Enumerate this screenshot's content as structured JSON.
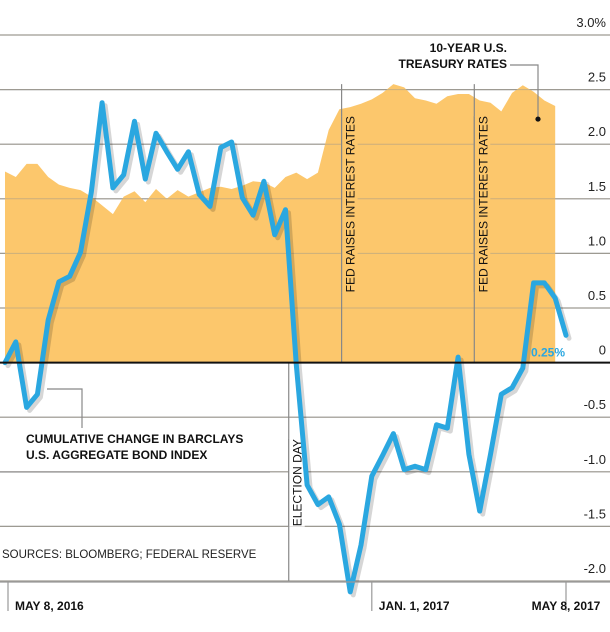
{
  "chart_data": {
    "type": "line",
    "title": "",
    "xlabel": "",
    "ylabel": "",
    "ylim": [
      -2.0,
      3.0
    ],
    "y_ticks": [
      {
        "value": 3.0,
        "label": "3.0%"
      },
      {
        "value": 2.5,
        "label": "2.5"
      },
      {
        "value": 2.0,
        "label": "2.0"
      },
      {
        "value": 1.5,
        "label": "1.5"
      },
      {
        "value": 1.0,
        "label": "1.0"
      },
      {
        "value": 0.5,
        "label": "0.5"
      },
      {
        "value": 0,
        "label": "0"
      },
      {
        "value": -0.5,
        "label": "-0.5"
      },
      {
        "value": -1.0,
        "label": "-1.0"
      },
      {
        "value": -1.5,
        "label": "-1.5"
      },
      {
        "value": -2.0,
        "label": "-2.0"
      }
    ],
    "x_range_weeks": [
      0,
      52
    ],
    "x_ticks": [
      {
        "week": 0,
        "label": "MAY 8, 2016"
      },
      {
        "week": 34,
        "label": "JAN. 1, 2017"
      },
      {
        "week": 52,
        "label": "MAY 8, 2017"
      }
    ],
    "grid": true,
    "series": [
      {
        "name": "10-YEAR U.S. TREASURY RATES",
        "type": "area",
        "color": "#fcc76c",
        "x": [
          0,
          1,
          2,
          3,
          4,
          5,
          6,
          7,
          8,
          9,
          10,
          11,
          12,
          13,
          14,
          15,
          16,
          17,
          18,
          19,
          20,
          21,
          22,
          23,
          24,
          25,
          26,
          27,
          28,
          29,
          30,
          31,
          32,
          33,
          34,
          35,
          36,
          37,
          38,
          39,
          40,
          41,
          42,
          43,
          44,
          45,
          46,
          47,
          48,
          49,
          50,
          51
        ],
        "values": [
          1.75,
          1.7,
          1.82,
          1.82,
          1.7,
          1.63,
          1.6,
          1.58,
          1.52,
          1.44,
          1.36,
          1.52,
          1.57,
          1.47,
          1.59,
          1.5,
          1.58,
          1.52,
          1.56,
          1.6,
          1.61,
          1.59,
          1.62,
          1.66,
          1.65,
          1.6,
          1.7,
          1.74,
          1.68,
          1.74,
          2.13,
          2.32,
          2.34,
          2.37,
          2.41,
          2.47,
          2.55,
          2.52,
          2.42,
          2.4,
          2.37,
          2.44,
          2.46,
          2.46,
          2.4,
          2.38,
          2.3,
          2.47,
          2.54,
          2.48,
          2.4,
          2.35
        ]
      },
      {
        "name": "CUMULATIVE CHANGE IN BARCLAYS U.S. AGGREGATE BOND INDEX",
        "type": "line",
        "color": "#2aa7e0",
        "x": [
          0,
          1,
          2,
          3,
          4,
          5,
          6,
          7,
          8,
          9,
          10,
          11,
          12,
          13,
          14,
          15,
          16,
          17,
          18,
          19,
          20,
          21,
          22,
          23,
          24,
          25,
          26,
          27,
          28,
          29,
          30,
          31,
          32,
          33,
          34,
          35,
          36,
          37,
          38,
          39,
          40,
          41,
          42,
          43,
          44,
          45,
          46,
          47,
          48,
          49,
          50,
          51,
          52
        ],
        "values": [
          0.0,
          0.19,
          -0.41,
          -0.29,
          0.39,
          0.74,
          0.79,
          1.01,
          1.56,
          2.38,
          1.6,
          1.72,
          2.21,
          1.68,
          2.1,
          1.93,
          1.77,
          1.93,
          1.54,
          1.43,
          1.97,
          2.02,
          1.51,
          1.35,
          1.66,
          1.17,
          1.4,
          -0.02,
          -1.12,
          -1.3,
          -1.23,
          -1.48,
          -2.1,
          -1.67,
          -1.04,
          -0.85,
          -0.65,
          -0.98,
          -0.95,
          -0.98,
          -0.57,
          -0.6,
          0.05,
          -0.84,
          -1.36,
          -0.84,
          -0.29,
          -0.23,
          -0.05,
          0.73,
          0.73,
          0.59,
          0.25
        ]
      }
    ],
    "annotations": [
      {
        "text": "ELECTION DAY",
        "week": 26.3,
        "orientation": "vertical"
      },
      {
        "text": "FED RAISES INTEREST RATES",
        "week": 31.2,
        "orientation": "vertical"
      },
      {
        "text": "FED RAISES INTEREST RATES",
        "week": 43.5,
        "orientation": "vertical"
      },
      {
        "text": "0.25%",
        "week": 52,
        "value": 0.25,
        "target": "bond-index-end"
      }
    ],
    "legend": "inline-labels",
    "series_labels": {
      "treasury": [
        "10-YEAR U.S.",
        "TREASURY RATES"
      ],
      "bond": [
        "CUMULATIVE CHANGE IN BARCLAYS",
        "U.S. AGGREGATE BOND INDEX"
      ]
    },
    "source": "SOURCES: BLOOMBERG; FEDERAL RESERVE"
  }
}
